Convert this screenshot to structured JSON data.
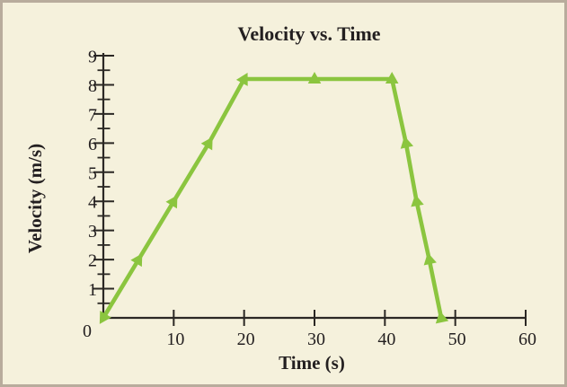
{
  "chart_data": {
    "type": "line",
    "title": "Velocity vs. Time",
    "xlabel": "Time (s)",
    "ylabel": "Velocity (m/s)",
    "xlim": [
      0,
      60
    ],
    "ylim": [
      0,
      9
    ],
    "x_ticks": [
      10,
      20,
      30,
      40,
      50,
      60
    ],
    "y_ticks": [
      1,
      2,
      3,
      4,
      5,
      6,
      7,
      8,
      9
    ],
    "y_minor_tick_step": 0.5,
    "origin_label": "0",
    "grid": false,
    "legend": null,
    "series": [
      {
        "name": "velocity",
        "color": "#8bc53f",
        "marker": "triangle",
        "points": [
          [
            0,
            0
          ],
          [
            5,
            2
          ],
          [
            10,
            4
          ],
          [
            15,
            6
          ],
          [
            20,
            8.2
          ],
          [
            30,
            8.2
          ],
          [
            41,
            8.2
          ],
          [
            43,
            6
          ],
          [
            44.5,
            4
          ],
          [
            46.3,
            2
          ],
          [
            48,
            0
          ]
        ]
      }
    ]
  },
  "colors": {
    "background": "#f5f1dc",
    "border": "#b8ac9c",
    "axis": "#2b2824",
    "text": "#231f20"
  }
}
